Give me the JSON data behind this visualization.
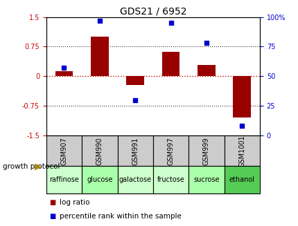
{
  "title": "GDS21 / 6952",
  "samples": [
    "GSM907",
    "GSM990",
    "GSM991",
    "GSM997",
    "GSM999",
    "GSM1001"
  ],
  "protocols": [
    "raffinose",
    "glucose",
    "galactose",
    "fructose",
    "sucrose",
    "ethanol"
  ],
  "protocol_colors": [
    "#ccffcc",
    "#aaffaa",
    "#ccffcc",
    "#ccffcc",
    "#aaffaa",
    "#55cc55"
  ],
  "log_ratio": [
    0.12,
    1.0,
    -0.22,
    0.62,
    0.28,
    -1.05
  ],
  "percentile_rank": [
    57,
    97,
    30,
    95,
    78,
    8
  ],
  "left_ylim": [
    -1.5,
    1.5
  ],
  "right_ylim": [
    0,
    100
  ],
  "left_yticks": [
    -1.5,
    -0.75,
    0,
    0.75,
    1.5
  ],
  "right_yticks": [
    0,
    25,
    50,
    75,
    100
  ],
  "right_yticklabels": [
    "0",
    "25",
    "50",
    "75",
    "100%"
  ],
  "bar_color": "#990000",
  "dot_color": "#0000cc",
  "zero_line_color": "#cc0000",
  "hline_color": "#333333",
  "title_fontsize": 10,
  "tick_fontsize": 7,
  "legend_fontsize": 7.5,
  "protocol_fontsize": 7,
  "sample_fontsize": 7,
  "bar_width": 0.5,
  "sample_bg": "#cccccc",
  "arrow_color": "#aa8800"
}
